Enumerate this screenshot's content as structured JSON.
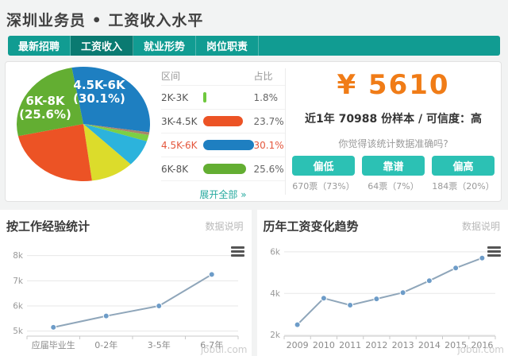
{
  "page": {
    "title": "深圳业务员 • 工资收入水平",
    "watermark": "jobui.com"
  },
  "colors": {
    "accent_teal": "#119c92",
    "active_tab_teal": "#0a7a71",
    "button_teal": "#2cc1b4",
    "amount_orange": "#f07c17",
    "highlight_red": "#e4573d"
  },
  "tabs": [
    {
      "name": "tab-latest-jobs",
      "label": "最新招聘",
      "active": false
    },
    {
      "name": "tab-salary-income",
      "label": "工资收入",
      "active": true
    },
    {
      "name": "tab-employment-situation",
      "label": "就业形势",
      "active": false
    },
    {
      "name": "tab-job-duties",
      "label": "岗位职责",
      "active": false
    }
  ],
  "range_table": {
    "col_range": "区间",
    "col_pct": "占比",
    "rows": [
      {
        "range": "2K-3K",
        "pct": "1.8%",
        "value": 1.8,
        "color": "#6fc83e",
        "highlight": false
      },
      {
        "range": "3K-4.5K",
        "pct": "23.7%",
        "value": 23.7,
        "color": "#ec5325",
        "highlight": false
      },
      {
        "range": "4.5K-6K",
        "pct": "30.1%",
        "value": 30.1,
        "color": "#1e7fc1",
        "highlight": true
      },
      {
        "range": "6K-8K",
        "pct": "25.6%",
        "value": 25.6,
        "color": "#63ae32",
        "highlight": false
      }
    ],
    "expand_label": "展开全部 »"
  },
  "salary_summary": {
    "amount": "¥ 5610",
    "sample_prefix": "近1年 ",
    "sample_count": "70988",
    "sample_middle": " 份样本 / 可信度：",
    "confidence": "高",
    "question": "你觉得该统计数据准确吗?",
    "votes": [
      {
        "name": "vote-too-low",
        "label": "偏低",
        "count": "670票（73%）"
      },
      {
        "name": "vote-reliable",
        "label": "靠谱",
        "count": "64票（7%）"
      },
      {
        "name": "vote-too-high",
        "label": "偏高",
        "count": "184票（20%）"
      }
    ]
  },
  "sections": [
    {
      "title": "按工作经验统计",
      "note": "数据说明"
    },
    {
      "title": "历年工资变化趋势",
      "note": "数据说明"
    }
  ],
  "chart_data": [
    {
      "type": "pie",
      "title": "工资区间占比",
      "start_angle_deg": -10,
      "slices": [
        {
          "label": "4.5K-6K",
          "pct": 30.1,
          "color": "#1e7fc1",
          "labeled": true
        },
        {
          "label": "",
          "pct": 0.8,
          "color": "#a9836a",
          "labeled": false
        },
        {
          "label": "2K-3K",
          "pct": 1.8,
          "color": "#7ccf44",
          "labeled": false
        },
        {
          "label": "",
          "pct": 7.5,
          "color": "#2cb3dc",
          "labeled": false
        },
        {
          "label": "",
          "pct": 10.5,
          "color": "#dcdc2b",
          "labeled": false
        },
        {
          "label": "3K-4.5K",
          "pct": 23.7,
          "color": "#ec5325",
          "labeled": false
        },
        {
          "label": "6K-8K",
          "pct": 25.6,
          "color": "#63ae32",
          "labeled": true
        }
      ]
    },
    {
      "type": "line",
      "title": "按工作经验统计",
      "categories": [
        "应届毕业生",
        "0-2年",
        "3-5年",
        "6-7年"
      ],
      "values": [
        5150,
        5600,
        6000,
        7250
      ],
      "ylim": [
        4800,
        8400
      ],
      "yticks": [
        {
          "v": 5000,
          "label": "5k"
        },
        {
          "v": 6000,
          "label": "6k"
        },
        {
          "v": 7000,
          "label": "7k"
        },
        {
          "v": 8000,
          "label": "8k"
        }
      ],
      "line_color": "#8fa6ba",
      "marker_color": "#6d9cc8"
    },
    {
      "type": "line",
      "title": "历年工资变化趋势",
      "categories": [
        "2009",
        "2010",
        "2011",
        "2012",
        "2013",
        "2014",
        "2015",
        "2016"
      ],
      "values": [
        2500,
        3770,
        3440,
        3740,
        4040,
        4610,
        5220,
        5700
      ],
      "ylim": [
        1950,
        6300
      ],
      "yticks": [
        {
          "v": 2000,
          "label": "2k"
        },
        {
          "v": 4000,
          "label": "4k"
        },
        {
          "v": 6000,
          "label": "6k"
        }
      ],
      "line_color": "#8fa6ba",
      "marker_color": "#6d9cc8"
    }
  ]
}
